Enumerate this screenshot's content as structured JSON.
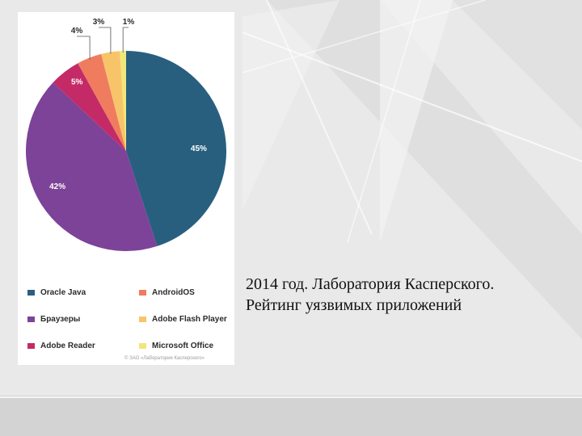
{
  "chart_data": {
    "type": "pie",
    "categories": [
      "Oracle Java",
      "Браузеры",
      "Adobe Reader",
      "AndroidOS",
      "Adobe Flash Player",
      "Microsoft Office"
    ],
    "values": [
      45,
      42,
      5,
      4,
      3,
      1
    ],
    "value_labels": [
      "45%",
      "42%",
      "5%",
      "4%",
      "3%",
      "1%"
    ],
    "colors": [
      "#285f7f",
      "#7d4398",
      "#c42a66",
      "#ef7c5e",
      "#f8c46a",
      "#f1e67a"
    ],
    "legend_position": "bottom"
  },
  "legend": {
    "items": [
      {
        "label": "Oracle Java",
        "color": "#285f7f"
      },
      {
        "label": "Браузеры",
        "color": "#7d4398"
      },
      {
        "label": "Adobe Reader",
        "color": "#c42a66"
      },
      {
        "label": "AndroidOS",
        "color": "#ef7c5e"
      },
      {
        "label": "Adobe Flash Player",
        "color": "#f8c46a"
      },
      {
        "label": "Microsoft Office",
        "color": "#f1e67a"
      }
    ]
  },
  "copyright": "© ЗАО «Лаборатория Касперского»",
  "caption": {
    "line1": "2014 год. Лаборатория Касперского.",
    "line2": "Рейтинг уязвимых приложений"
  }
}
